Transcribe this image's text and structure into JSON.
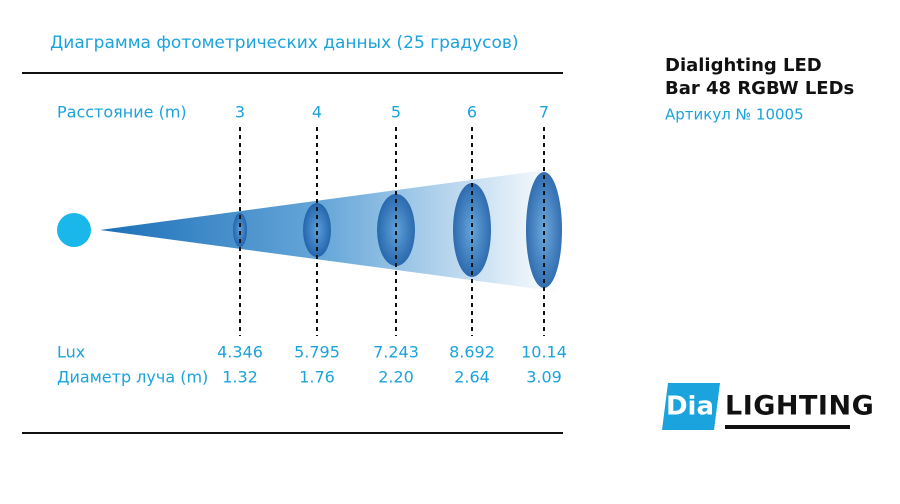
{
  "title": "Диаграмма фотометрических данных (25 градусов)",
  "product": {
    "name_lines": [
      "Dialighting LED",
      "Bar 48 RGBW LEDs"
    ],
    "article": "Артикул № 10005"
  },
  "rows": [
    {
      "label": "Расстояние (m)",
      "values": [
        "3",
        "4",
        "5",
        "6",
        "7"
      ]
    },
    {
      "label": "Lux",
      "values": [
        "4.346",
        "5.795",
        "7.243",
        "8.692",
        "10.14"
      ]
    },
    {
      "label": "Диаметр луча (m)",
      "values": [
        "1.32",
        "1.76",
        "2.20",
        "2.64",
        "3.09"
      ]
    }
  ],
  "logo": {
    "prefix": "Dia",
    "word": "LIGHTING"
  }
}
